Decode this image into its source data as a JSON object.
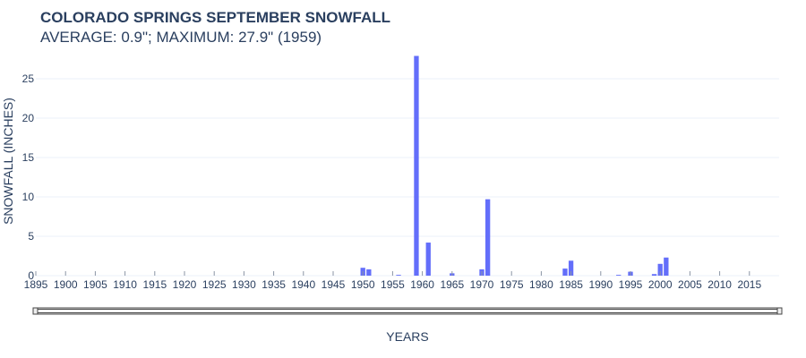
{
  "title": "COLORADO SPRINGS SEPTEMBER SNOWFALL",
  "subtitle": "AVERAGE: 0.9\"; MAXIMUM: 27.9\" (1959)",
  "colors": {
    "bar": "#636efa",
    "text": "#2a3f5f",
    "grid": "#ebf0f8"
  },
  "range_slider": {
    "visible": true
  },
  "chart_data": {
    "type": "bar",
    "title": "COLORADO SPRINGS SEPTEMBER SNOWFALL",
    "subtitle": "AVERAGE: 0.9\"; MAXIMUM: 27.9\" (1959)",
    "xlabel": "YEARS",
    "ylabel": "SNOWFALL (INCHES)",
    "xlim": [
      1895,
      2019
    ],
    "ylim": [
      0,
      28
    ],
    "grid": true,
    "x_ticks": [
      "1895",
      "1900",
      "1905",
      "1910",
      "1915",
      "1920",
      "1925",
      "1930",
      "1935",
      "1940",
      "1945",
      "1950",
      "1955",
      "1960",
      "1965",
      "1970",
      "1975",
      "1980",
      "1985",
      "1990",
      "1995",
      "2000",
      "2005",
      "2010",
      "2015"
    ],
    "y_ticks": [
      "0",
      "5",
      "10",
      "15",
      "20",
      "25"
    ],
    "x": [
      1950,
      1951,
      1956,
      1959,
      1961,
      1965,
      1970,
      1971,
      1984,
      1985,
      1993,
      1995,
      1999,
      2000,
      2001
    ],
    "values": [
      1.0,
      0.8,
      0.1,
      27.9,
      4.2,
      0.3,
      0.8,
      9.7,
      0.9,
      1.9,
      0.1,
      0.5,
      0.2,
      1.5,
      2.3
    ]
  }
}
